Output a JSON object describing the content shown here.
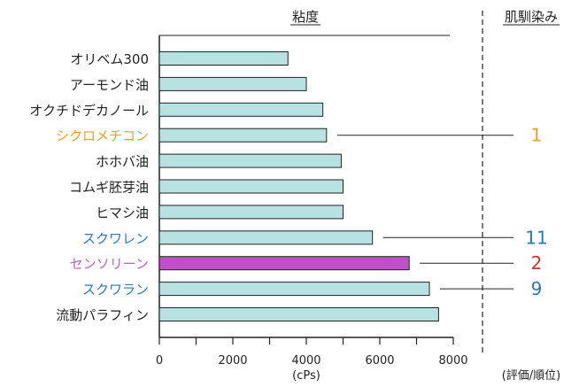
{
  "chart_data": {
    "type": "bar",
    "orientation": "horizontal",
    "title": "粘度",
    "side_title": "肌馴染み",
    "xlabel": "(cPs)",
    "side_axis_label": "(評価/順位)",
    "xlim": [
      0,
      8000
    ],
    "xticks": [
      0,
      2000,
      4000,
      6000,
      8000
    ],
    "categories": [
      "オリベム300",
      "アーモンド油",
      "オクチドデカノール",
      "シクロメチコン",
      "ホホバ油",
      "コムギ胚芽油",
      "ヒマシ油",
      "スクワレン",
      "センソリーン",
      "スクワラン",
      "流動パラフィン"
    ],
    "values": [
      3500,
      4000,
      4450,
      4550,
      4950,
      5000,
      5000,
      5800,
      6800,
      7350,
      7600
    ],
    "label_colors": [
      "#222222",
      "#222222",
      "#222222",
      "#f0a020",
      "#222222",
      "#222222",
      "#222222",
      "#2a78c2",
      "#c060c0",
      "#2a78c2",
      "#222222"
    ],
    "bar_colors": [
      "#b8e2e2",
      "#b8e2e2",
      "#b8e2e2",
      "#b8e2e2",
      "#b8e2e2",
      "#b8e2e2",
      "#b8e2e2",
      "#b8e2e2",
      "#c050c8",
      "#b8e2e2",
      "#b8e2e2"
    ],
    "annotations": [
      {
        "category_index": 3,
        "rank": "1",
        "color": "#f0a020"
      },
      {
        "category_index": 7,
        "rank": "11",
        "color": "#2a78c2"
      },
      {
        "category_index": 8,
        "rank": "2",
        "color": "#d03030"
      },
      {
        "category_index": 9,
        "rank": "9",
        "color": "#2a78c2"
      }
    ],
    "grid": false
  }
}
